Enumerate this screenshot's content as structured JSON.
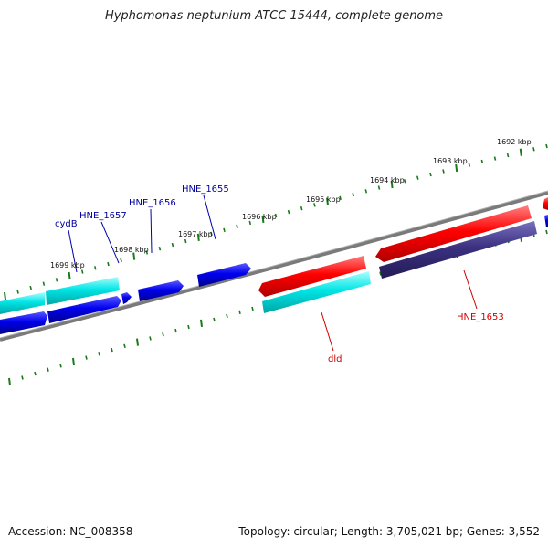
{
  "title": "Hyphomonas neptunium ATCC 15444, complete genome",
  "footer": {
    "accession": "Accession: NC_008358",
    "summary": "Topology: circular; Length: 3,705,021 bp; Genes: 3,552"
  },
  "colors": {
    "forward_strand": "#ff0000",
    "reverse_strand": "#0000ff",
    "cyan_track": "#00e5e5",
    "purple_track": "#3c3080",
    "backbone": "#7a7a7a",
    "ticks": "#1a7a1a",
    "blue_label": "#00009a",
    "red_label": "#cc0000"
  },
  "tick_labels": [
    "1692 kbp",
    "1693 kbp",
    "1694 kbp",
    "1695 kbp",
    "1696 kbp",
    "1697 kbp",
    "1698 kbp",
    "1699 kbp"
  ],
  "gene_labels": {
    "cydB": "cydB",
    "HNE_1657": "HNE_1657",
    "HNE_1656": "HNE_1656",
    "HNE_1655": "HNE_1655",
    "dld": "dld",
    "HNE_1653": "HNE_1653"
  }
}
